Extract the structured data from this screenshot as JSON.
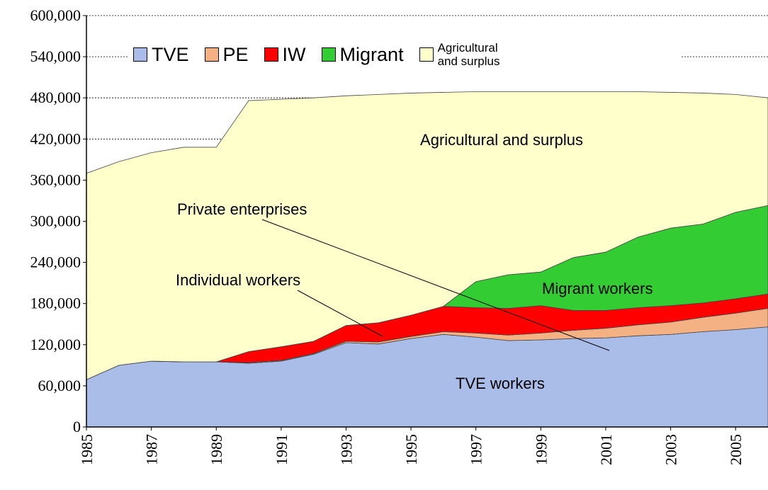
{
  "chart_data": {
    "type": "stacked_area",
    "x": [
      1985,
      1986,
      1987,
      1988,
      1989,
      1990,
      1991,
      1992,
      1993,
      1994,
      1995,
      1996,
      1997,
      1998,
      1999,
      2000,
      2001,
      2002,
      2003,
      2004,
      2005,
      2006
    ],
    "xlim": [
      1985,
      2006
    ],
    "xticks": [
      1985,
      1987,
      1989,
      1991,
      1993,
      1995,
      1997,
      1999,
      2001,
      2003,
      2005
    ],
    "ylim": [
      0,
      600000
    ],
    "yticks": [
      0,
      {
        "value": 60000,
        "label": "60,000"
      },
      {
        "value": 120000,
        "label": "120,000"
      },
      {
        "value": 180000,
        "label": "180,000"
      },
      {
        "value": 240000,
        "label": "240,000"
      },
      {
        "value": 300000,
        "label": "300,000"
      },
      {
        "value": 360000,
        "label": "360,000"
      },
      {
        "value": 420000,
        "label": "420,000"
      },
      {
        "value": 480000,
        "label": "480,000"
      },
      {
        "value": 540000,
        "label": "540,000"
      },
      {
        "value": 600000,
        "label": "600,000"
      }
    ],
    "grid": true,
    "series": [
      {
        "name": "TVE",
        "color": "#a9bde8",
        "values": [
          69000,
          90000,
          96000,
          95000,
          95000,
          93000,
          96000,
          106000,
          123000,
          121000,
          129000,
          135000,
          131000,
          126000,
          127000,
          129000,
          130000,
          133000,
          135000,
          139000,
          142000,
          146000
        ]
      },
      {
        "name": "PE",
        "color": "#f4b183",
        "values": [
          0,
          0,
          0,
          0,
          0,
          1000,
          1000,
          1000,
          2000,
          3000,
          3000,
          4000,
          6000,
          8000,
          10000,
          12000,
          14000,
          16000,
          18000,
          21000,
          24000,
          27000
        ]
      },
      {
        "name": "IW",
        "color": "#ff0000",
        "values": [
          0,
          0,
          0,
          0,
          0,
          16000,
          20000,
          18000,
          23000,
          28000,
          31000,
          37000,
          37000,
          39000,
          40000,
          29000,
          26000,
          25000,
          24000,
          21000,
          21000,
          21000
        ]
      },
      {
        "name": "Migrant",
        "color": "#33cc33",
        "values": [
          0,
          0,
          0,
          0,
          0,
          0,
          0,
          0,
          0,
          0,
          0,
          0,
          38000,
          49000,
          49000,
          77000,
          85000,
          103000,
          113000,
          115000,
          126000,
          129000
        ]
      },
      {
        "name": "Agricultural and surplus",
        "color": "#ffffcc",
        "values": [
          301000,
          297000,
          304000,
          313000,
          313000,
          366000,
          361000,
          355000,
          335000,
          333000,
          324000,
          312000,
          277000,
          267000,
          263000,
          242000,
          234000,
          212000,
          198000,
          191000,
          172000,
          157000
        ]
      }
    ],
    "annotations": [
      "Agricultural and surplus",
      "Private enterprises",
      "Individual workers",
      "Migrant workers",
      "TVE workers"
    ]
  }
}
